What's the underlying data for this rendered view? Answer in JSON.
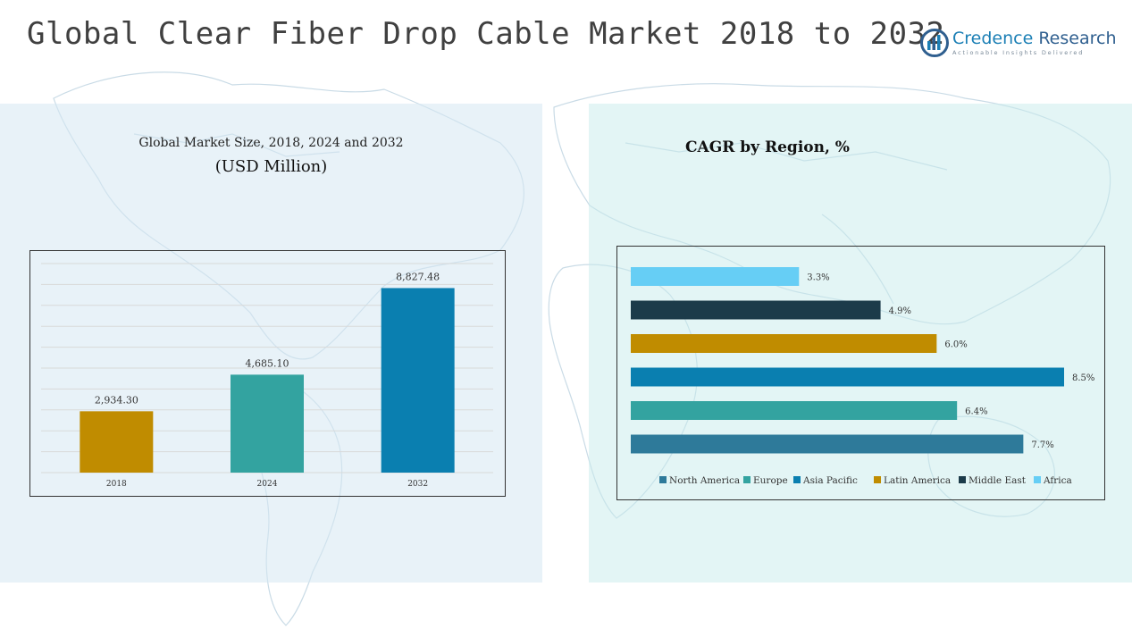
{
  "header": {
    "title": "Global Clear Fiber Drop Cable Market 2018 to 2032",
    "logo_name_part1": "Credence",
    "logo_name_part2": "Research",
    "logo_tagline": "Actionable Insights Delivered"
  },
  "left_panel": {
    "subtitle": "Global Market Size, 2018, 2024 and 2032",
    "units": "(USD Million)"
  },
  "right_panel": {
    "subtitle": "CAGR by Region, %"
  },
  "colors": {
    "north_america": "#2e7a9a",
    "europe": "#33a3a0",
    "asia_pacific": "#0a7fb0",
    "latin_america": "#c08c00",
    "middle_east": "#1c3b4a",
    "africa": "#66cef5"
  },
  "chart_data": [
    {
      "type": "bar",
      "title": "",
      "categories": [
        "2018",
        "2024",
        "2032"
      ],
      "values": [
        2934.3,
        4685.1,
        8827.48
      ],
      "value_labels": [
        "2,934.30",
        "4,685.10",
        "8,827.48"
      ],
      "bar_colors": [
        "#c08c00",
        "#33a3a0",
        "#0a7fb0"
      ],
      "ylim": [
        0,
        10000
      ],
      "grid": true
    },
    {
      "type": "bar",
      "orientation": "horizontal",
      "title": "",
      "categories": [
        "Africa",
        "Middle East",
        "Latin America",
        "Asia Pacific",
        "Europe",
        "North America"
      ],
      "values": [
        3.3,
        4.9,
        6.0,
        8.5,
        6.4,
        7.7
      ],
      "value_labels": [
        "3.3%",
        "4.9%",
        "6.0%",
        "8.5%",
        "6.4%",
        "7.7%"
      ],
      "bar_colors": [
        "#66cef5",
        "#1c3b4a",
        "#c08c00",
        "#0a7fb0",
        "#33a3a0",
        "#2e7a9a"
      ],
      "xlim": [
        0,
        8.5
      ],
      "legend": {
        "position": "bottom",
        "entries": [
          "North America",
          "Europe",
          "Asia Pacific",
          "Latin America",
          "Middle East",
          "Africa"
        ],
        "colors": [
          "#2e7a9a",
          "#33a3a0",
          "#0a7fb0",
          "#c08c00",
          "#1c3b4a",
          "#66cef5"
        ]
      }
    }
  ]
}
